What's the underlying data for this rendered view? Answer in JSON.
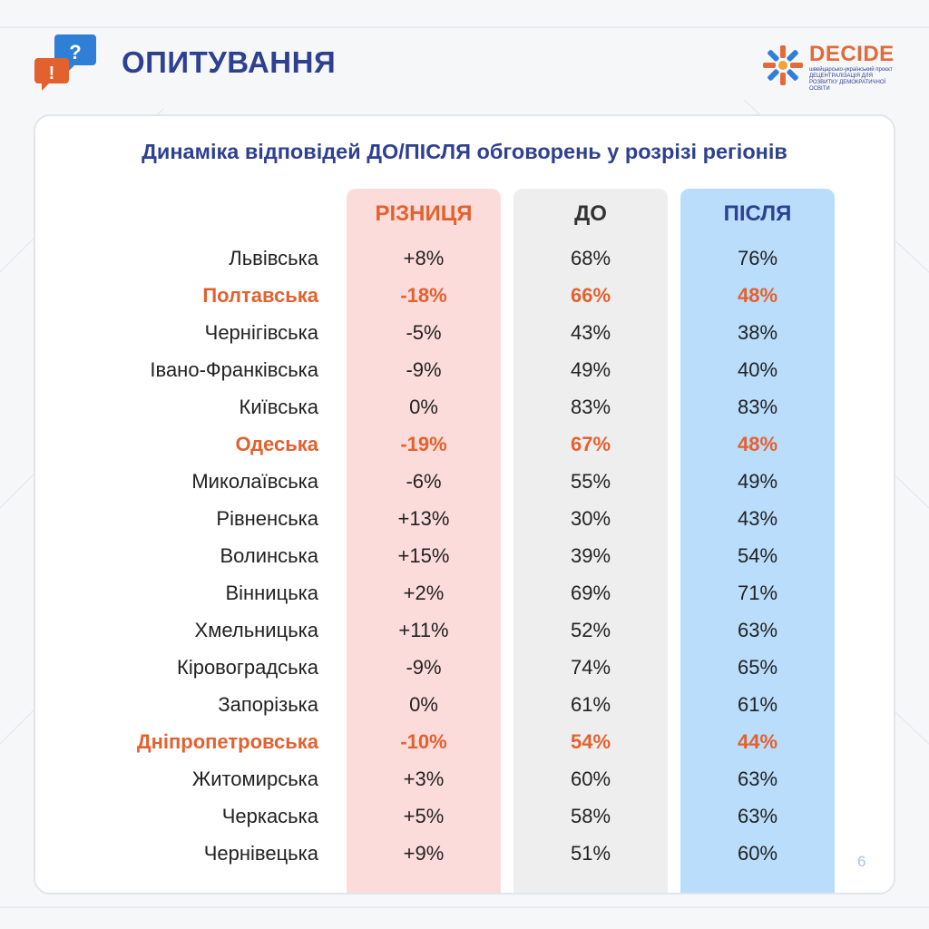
{
  "header": {
    "title": "ОПИТУВАННЯ"
  },
  "logo": {
    "name": "DECIDE",
    "subtitle": "швейцарсько-український проєкт ДЕЦЕНТРАЛІЗАЦІЯ ДЛЯ РОЗВИТКУ ДЕМОКРАТИЧНОЇ ОСВІТИ"
  },
  "colors": {
    "accent_blue": "#2e4190",
    "accent_orange": "#e3612f",
    "diff_bg": "#fcdcda",
    "before_bg": "#eeeeee",
    "after_bg": "#b9ddfb"
  },
  "page_number": "6",
  "chart_data": {
    "type": "table",
    "title": "Динаміка відповідей ДО/ПІСЛЯ обговорень у розрізі регіонів",
    "columns": [
      "РІЗНИЦЯ",
      "ДО",
      "ПІСЛЯ"
    ],
    "rows": [
      {
        "region": "Львівська",
        "diff": "+8%",
        "before": "68%",
        "after": "76%",
        "highlight": false
      },
      {
        "region": "Полтавська",
        "diff": "-18%",
        "before": "66%",
        "after": "48%",
        "highlight": true
      },
      {
        "region": "Чернігівська",
        "diff": "-5%",
        "before": "43%",
        "after": "38%",
        "highlight": false
      },
      {
        "region": "Івано-Франківська",
        "diff": "-9%",
        "before": "49%",
        "after": "40%",
        "highlight": false
      },
      {
        "region": "Київська",
        "diff": "0%",
        "before": "83%",
        "after": "83%",
        "highlight": false
      },
      {
        "region": "Одеська",
        "diff": "-19%",
        "before": "67%",
        "after": "48%",
        "highlight": true
      },
      {
        "region": "Миколаївська",
        "diff": "-6%",
        "before": "55%",
        "after": "49%",
        "highlight": false
      },
      {
        "region": "Рівненська",
        "diff": "+13%",
        "before": "30%",
        "after": "43%",
        "highlight": false
      },
      {
        "region": "Волинська",
        "diff": "+15%",
        "before": "39%",
        "after": "54%",
        "highlight": false
      },
      {
        "region": "Вінницька",
        "diff": "+2%",
        "before": "69%",
        "after": "71%",
        "highlight": false
      },
      {
        "region": "Хмельницька",
        "diff": "+11%",
        "before": "52%",
        "after": "63%",
        "highlight": false
      },
      {
        "region": "Кіровоградська",
        "diff": "-9%",
        "before": "74%",
        "after": "65%",
        "highlight": false
      },
      {
        "region": "Запорізька",
        "diff": "0%",
        "before": "61%",
        "after": "61%",
        "highlight": false
      },
      {
        "region": "Дніпропетровська",
        "diff": "-10%",
        "before": "54%",
        "after": "44%",
        "highlight": true
      },
      {
        "region": "Житомирська",
        "diff": "+3%",
        "before": "60%",
        "after": "63%",
        "highlight": false
      },
      {
        "region": "Черкаська",
        "diff": "+5%",
        "before": "58%",
        "after": "63%",
        "highlight": false
      },
      {
        "region": "Чернівецька",
        "diff": "+9%",
        "before": "51%",
        "after": "60%",
        "highlight": false
      }
    ]
  }
}
